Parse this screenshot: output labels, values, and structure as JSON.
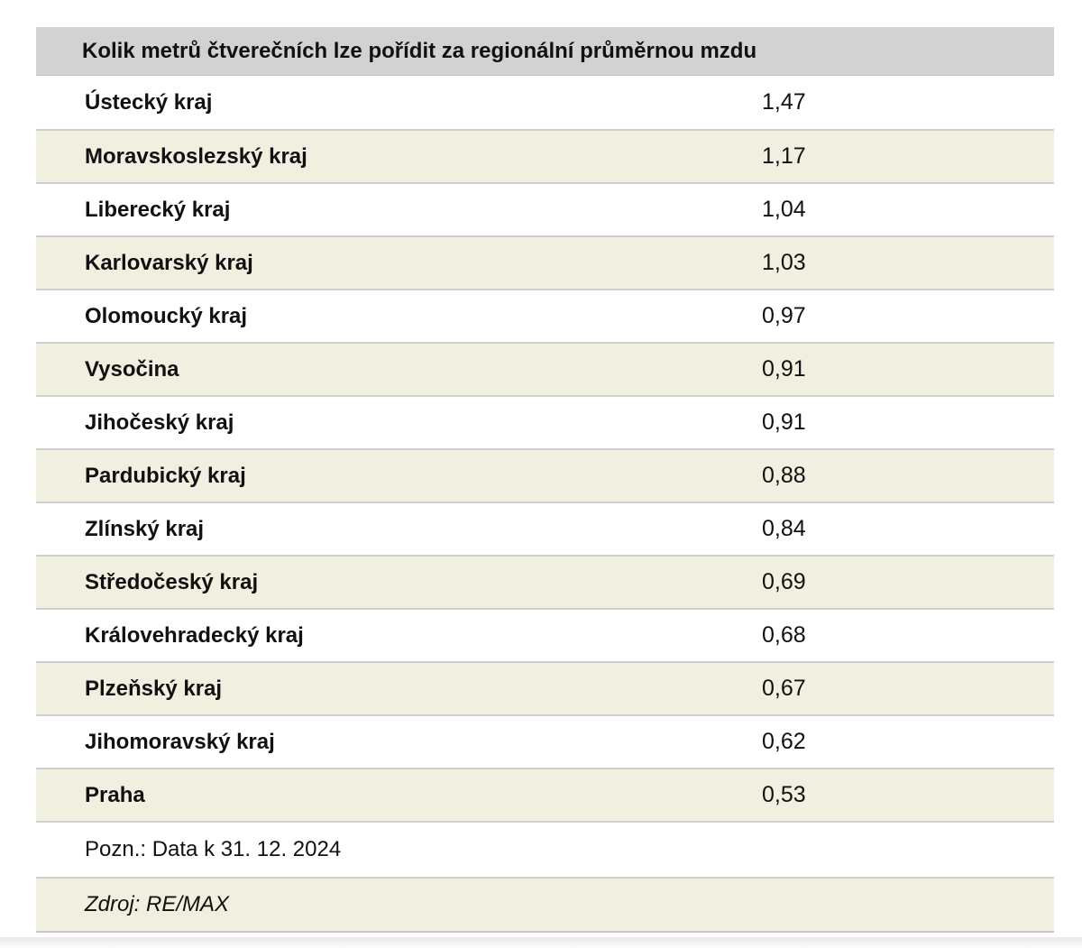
{
  "table": {
    "title": "Kolik metrů čtverečních lze pořídit za regionální průměrnou mzdu",
    "rows": [
      {
        "region": "Ústecký kraj",
        "value": "1,47"
      },
      {
        "region": "Moravskoslezský kraj",
        "value": "1,17"
      },
      {
        "region": "Liberecký kraj",
        "value": "1,04"
      },
      {
        "region": "Karlovarský kraj",
        "value": "1,03"
      },
      {
        "region": "Olomoucký kraj",
        "value": "0,97"
      },
      {
        "region": "Vysočina",
        "value": "0,91"
      },
      {
        "region": "Jihočeský kraj",
        "value": "0,91"
      },
      {
        "region": "Pardubický kraj",
        "value": "0,88"
      },
      {
        "region": "Zlínský kraj",
        "value": "0,84"
      },
      {
        "region": "Středočeský kraj",
        "value": "0,69"
      },
      {
        "region": "Královehradecký kraj",
        "value": "0,68"
      },
      {
        "region": "Plzeňský kraj",
        "value": "0,67"
      },
      {
        "region": "Jihomoravský kraj",
        "value": "0,62"
      },
      {
        "region": "Praha",
        "value": "0,53"
      }
    ],
    "note": "Pozn.: Data k 31. 12. 2024",
    "source": "Zdroj: RE/MAX"
  },
  "chart_data": {
    "type": "table",
    "title": "Kolik metrů čtverečních lze pořídit za regionální průměrnou mzdu",
    "categories": [
      "Ústecký kraj",
      "Moravskoslezský kraj",
      "Liberecký kraj",
      "Karlovarský kraj",
      "Olomoucký kraj",
      "Vysočina",
      "Jihočeský kraj",
      "Pardubický kraj",
      "Zlínský kraj",
      "Středočeský kraj",
      "Královehradecký kraj",
      "Plzeňský kraj",
      "Jihomoravský kraj",
      "Praha"
    ],
    "values": [
      1.47,
      1.17,
      1.04,
      1.03,
      0.97,
      0.91,
      0.91,
      0.88,
      0.84,
      0.69,
      0.68,
      0.67,
      0.62,
      0.53
    ],
    "note": "Pozn.: Data k 31. 12. 2024",
    "source": "Zdroj: RE/MAX"
  },
  "colors": {
    "header_bg": "#d2d2d2",
    "row_alt_bg": "#f1efdf",
    "row_bg": "#ffffff",
    "separator": "#cfcfcf",
    "text": "#111111"
  }
}
